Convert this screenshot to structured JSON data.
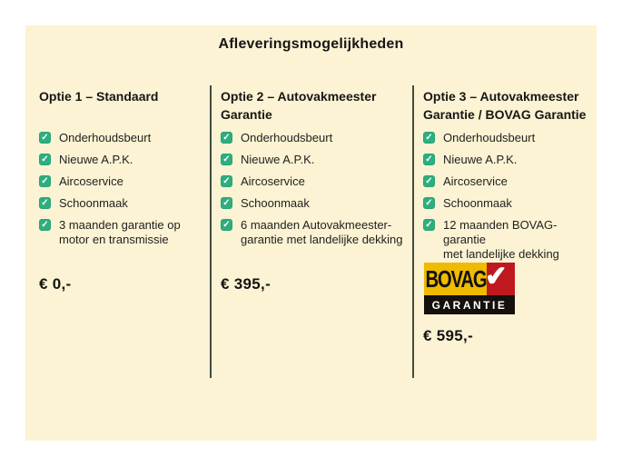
{
  "title": "Afleveringsmogelijkheden",
  "colors": {
    "page_bg": "#ffffff",
    "panel_bg": "#fbf3d3",
    "text": "#1c1c1c",
    "check_green": "#2eae7e",
    "divider": "#454a45",
    "bovag_yellow": "#efbb00",
    "bovag_red": "#c0181f",
    "bovag_black": "#14100d"
  },
  "columns": [
    {
      "heading": "Optie 1 – Standaard",
      "items": [
        "Onderhoudsbeurt",
        "Nieuwe A.P.K.",
        "Aircoservice",
        "Schoonmaak",
        "3 maanden garantie op\nmotor en transmissie"
      ],
      "price": "€ 0,-"
    },
    {
      "heading": "Optie 2 – Autovakmeester\nGarantie",
      "items": [
        "Onderhoudsbeurt",
        "Nieuwe A.P.K.",
        "Aircoservice",
        "Schoonmaak",
        "6 maanden Autovakmeester-\ngarantie met landelijke dekking"
      ],
      "price": "€ 395,-"
    },
    {
      "heading": "Optie 3 – Autovakmeester\nGarantie / BOVAG Garantie",
      "items": [
        "Onderhoudsbeurt",
        "Nieuwe A.P.K.",
        "Aircoservice",
        "Schoonmaak",
        "12 maanden BOVAG-garantie\nmet landelijke dekking"
      ],
      "price": "€ 595,-"
    }
  ],
  "bovag_logo": {
    "brand": "BOVAG",
    "word": "GARANTIE",
    "check_icon": "checkmark"
  }
}
